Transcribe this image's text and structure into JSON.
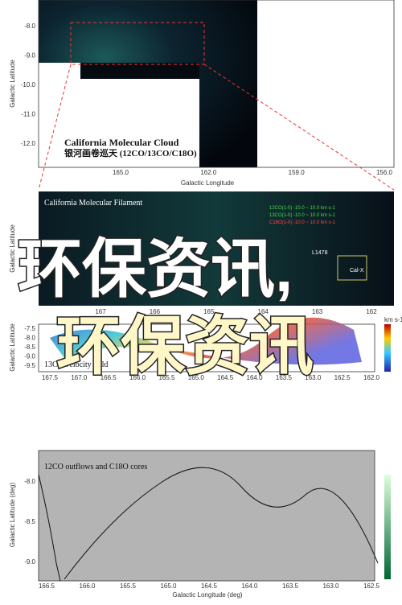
{
  "panels": [
    {
      "title": "California Molecular Cloud",
      "subtitle": "银河画卷巡天 (12CO/13CO/C18O)",
      "y_label": "Galactic Latitude",
      "x_label": "Galactic Longitude",
      "yticks": [
        "-8.0",
        "-9.0",
        "-10.0",
        "-11.0",
        "-12.0"
      ],
      "xticks": [
        "165.0",
        "162.0",
        "159.0",
        "156.0"
      ]
    },
    {
      "title": "California Molecular Filament",
      "y_label": "Galactic Latitude",
      "legend": [
        "12CO(1-0) -10.0 ~ 10.0 km s-1",
        "13CO(1-0) -10.0 ~ 10.0 km s-1",
        "C18O(1-0) -10.0 ~ 10.0 km s-1"
      ],
      "labels": [
        "L1478",
        "Cal-X"
      ],
      "xticks": [
        "167",
        "166",
        "165",
        "164",
        "163",
        "162"
      ]
    },
    {
      "title": "13CO velocity field",
      "y_label": "Galactic Latitude",
      "unit": "km s-1",
      "yticks": [
        "-7.5",
        "-8.0",
        "-8.5",
        "-9.0",
        "-9.5"
      ],
      "xticks": [
        "167.5",
        "167.0",
        "166.5",
        "166.0",
        "165.5",
        "165.0",
        "164.5",
        "164.0",
        "163.5",
        "163.0",
        "162.5",
        "162.0"
      ]
    },
    {
      "title": "12CO outflows and C18O cores",
      "y_label": "Galactic Latitude (deg)",
      "x_label": "Galactic Longitude (deg)",
      "yticks": [
        "-8.0",
        "-8.5",
        "-9.0"
      ],
      "xticks": [
        "166.5",
        "166.0",
        "165.5",
        "165.0",
        "164.5",
        "164.0",
        "163.5",
        "163.0",
        "162.5"
      ]
    }
  ],
  "overlay": [
    "环保资讯,",
    "环保资讯"
  ]
}
